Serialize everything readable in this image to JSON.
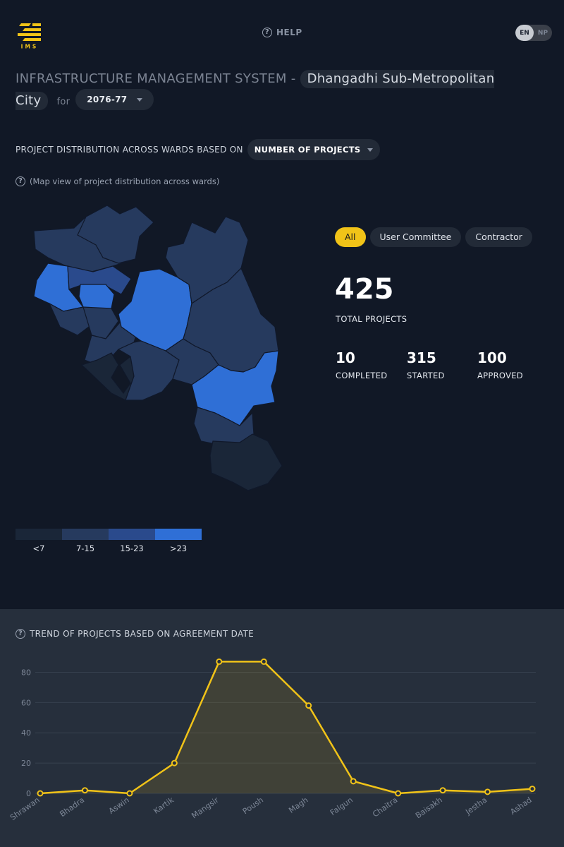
{
  "header": {
    "logo_text": "IMS",
    "help_label": "HELP",
    "lang": {
      "active": "EN",
      "inactive": "NP"
    }
  },
  "title": {
    "prefix": "INFRASTRUCTURE MANAGEMENT SYSTEM - ",
    "city": "Dhangadhi Sub-Metropolitan City",
    "for_label": "for",
    "year": "2076-77"
  },
  "distribution": {
    "label": "PROJECT DISTRIBUTION ACROSS WARDS BASED ON",
    "selected": "NUMBER OF PROJECTS",
    "map_note": "(Map view of project distribution across wards)"
  },
  "filters": [
    "All",
    "User Committee",
    "Contractor"
  ],
  "stats": {
    "total": "425",
    "total_label": "TOTAL PROJECTS",
    "items": [
      {
        "value": "10",
        "label": "COMPLETED"
      },
      {
        "value": "315",
        "label": "STARTED"
      },
      {
        "value": "100",
        "label": "APPROVED"
      }
    ]
  },
  "legend": [
    {
      "label": "<7",
      "color": "#1a2638"
    },
    {
      "label": "7-15",
      "color": "#263a5e"
    },
    {
      "label": "15-23",
      "color": "#2a4a8c"
    },
    {
      "label": ">23",
      "color": "#2f6fd6"
    }
  ],
  "colors": {
    "accent": "#f1c318",
    "map_high": "#2a66d4"
  },
  "trend": {
    "title": "TREND OF PROJECTS BASED ON AGREEMENT DATE",
    "chart_data": {
      "type": "area",
      "categories": [
        "Shrawan",
        "Bhadra",
        "Aswin",
        "Kartik",
        "Mangsir",
        "Poush",
        "Magh",
        "Falgun",
        "Chaitra",
        "Baisakh",
        "Jestha",
        "Ashad"
      ],
      "values": [
        0,
        2,
        0,
        20,
        87,
        87,
        58,
        8,
        0,
        2,
        1,
        3
      ],
      "yticks": [
        0,
        20,
        40,
        60,
        80
      ],
      "ylim": [
        0,
        90
      ],
      "grid": true
    }
  }
}
